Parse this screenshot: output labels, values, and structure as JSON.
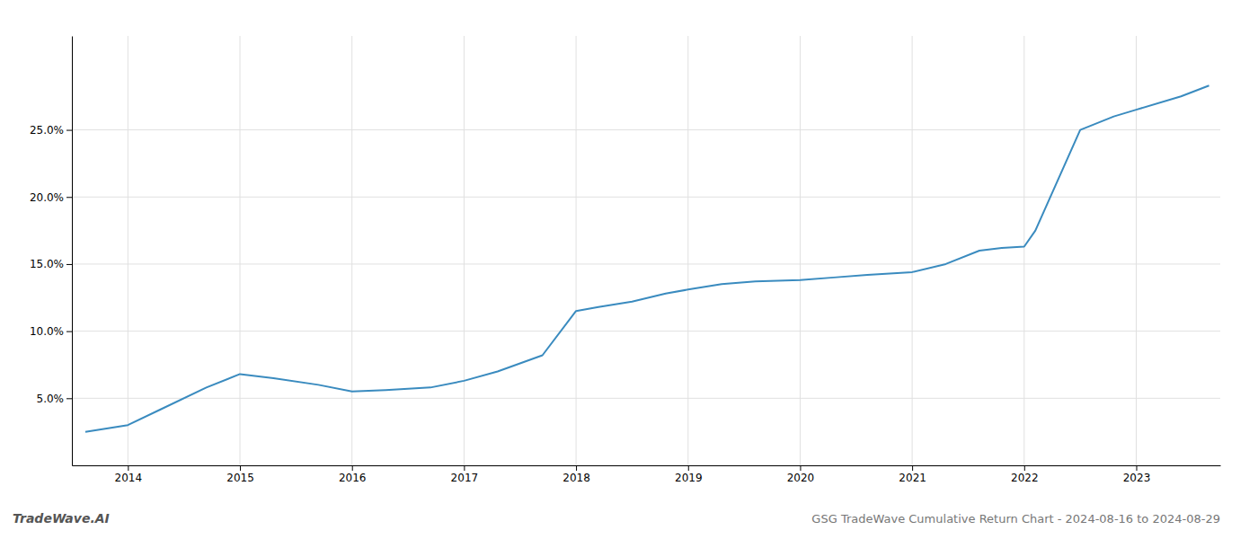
{
  "chart_data": {
    "type": "line",
    "title": "GSG TradeWave Cumulative Return Chart - 2024-08-16 to 2024-08-29",
    "annotations": [
      "TradeWave.AI"
    ],
    "x": [
      2013.62,
      2014.0,
      2014.3,
      2014.7,
      2015.0,
      2015.3,
      2015.7,
      2016.0,
      2016.3,
      2016.7,
      2017.0,
      2017.3,
      2017.7,
      2018.0,
      2018.2,
      2018.5,
      2018.8,
      2019.0,
      2019.3,
      2019.6,
      2020.0,
      2020.3,
      2020.6,
      2021.0,
      2021.3,
      2021.6,
      2021.8,
      2022.0,
      2022.1,
      2022.5,
      2022.8,
      2023.0,
      2023.4,
      2023.65
    ],
    "values": [
      2.5,
      3.0,
      4.2,
      5.8,
      6.8,
      6.5,
      6.0,
      5.5,
      5.6,
      5.8,
      6.3,
      7.0,
      8.2,
      11.5,
      11.8,
      12.2,
      12.8,
      13.1,
      13.5,
      13.7,
      13.8,
      14.0,
      14.2,
      14.4,
      15.0,
      16.0,
      16.2,
      16.3,
      17.5,
      25.0,
      26.0,
      26.5,
      27.5,
      28.3
    ],
    "color": "#3a8bbf",
    "xlim": [
      2013.5,
      2023.75
    ],
    "ylim": [
      0,
      32
    ],
    "xticks": [
      2014,
      2015,
      2016,
      2017,
      2018,
      2019,
      2020,
      2021,
      2022,
      2023
    ],
    "yticks": [
      {
        "value": 5.0,
        "label": "5.0%"
      },
      {
        "value": 10.0,
        "label": "10.0%"
      },
      {
        "value": 15.0,
        "label": "15.0%"
      },
      {
        "value": 20.0,
        "label": "20.0%"
      },
      {
        "value": 25.0,
        "label": "25.0%"
      }
    ],
    "grid": true
  }
}
